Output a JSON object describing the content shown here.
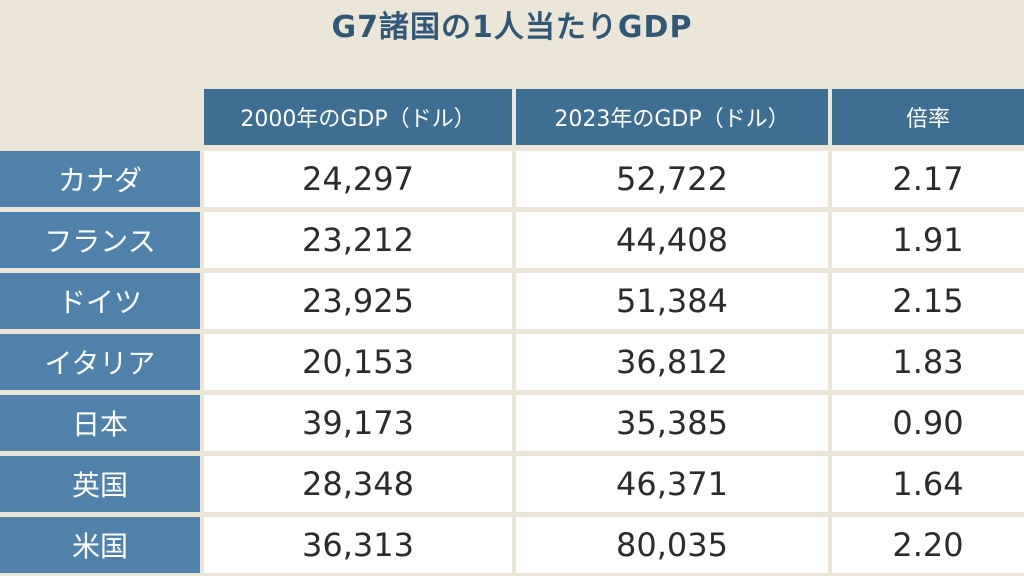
{
  "title": "G7諸国の1人当たりGDP",
  "chart_data": {
    "type": "table",
    "title": "G7諸国の1人当たりGDP",
    "columns": [
      "2000年のGDP（ドル）",
      "2023年のGDP（ドル）",
      "倍率"
    ],
    "rows": [
      {
        "country": "カナダ",
        "gdp2000": "24,297",
        "gdp2023": "52,722",
        "ratio": "2.17"
      },
      {
        "country": "フランス",
        "gdp2000": "23,212",
        "gdp2023": "44,408",
        "ratio": "1.91"
      },
      {
        "country": "ドイツ",
        "gdp2000": "23,925",
        "gdp2023": "51,384",
        "ratio": "2.15"
      },
      {
        "country": "イタリア",
        "gdp2000": "20,153",
        "gdp2023": "36,812",
        "ratio": "1.83"
      },
      {
        "country": "日本",
        "gdp2000": "39,173",
        "gdp2023": "35,385",
        "ratio": "0.90"
      },
      {
        "country": "英国",
        "gdp2000": "28,348",
        "gdp2023": "46,371",
        "ratio": "1.64"
      },
      {
        "country": "米国",
        "gdp2000": "36,313",
        "gdp2023": "80,035",
        "ratio": "2.20"
      }
    ]
  },
  "colors": {
    "background": "#ece6d9",
    "header": "#3e6e92",
    "row_label": "#4f81aa",
    "cell": "#ffffff",
    "title": "#2f5878"
  }
}
